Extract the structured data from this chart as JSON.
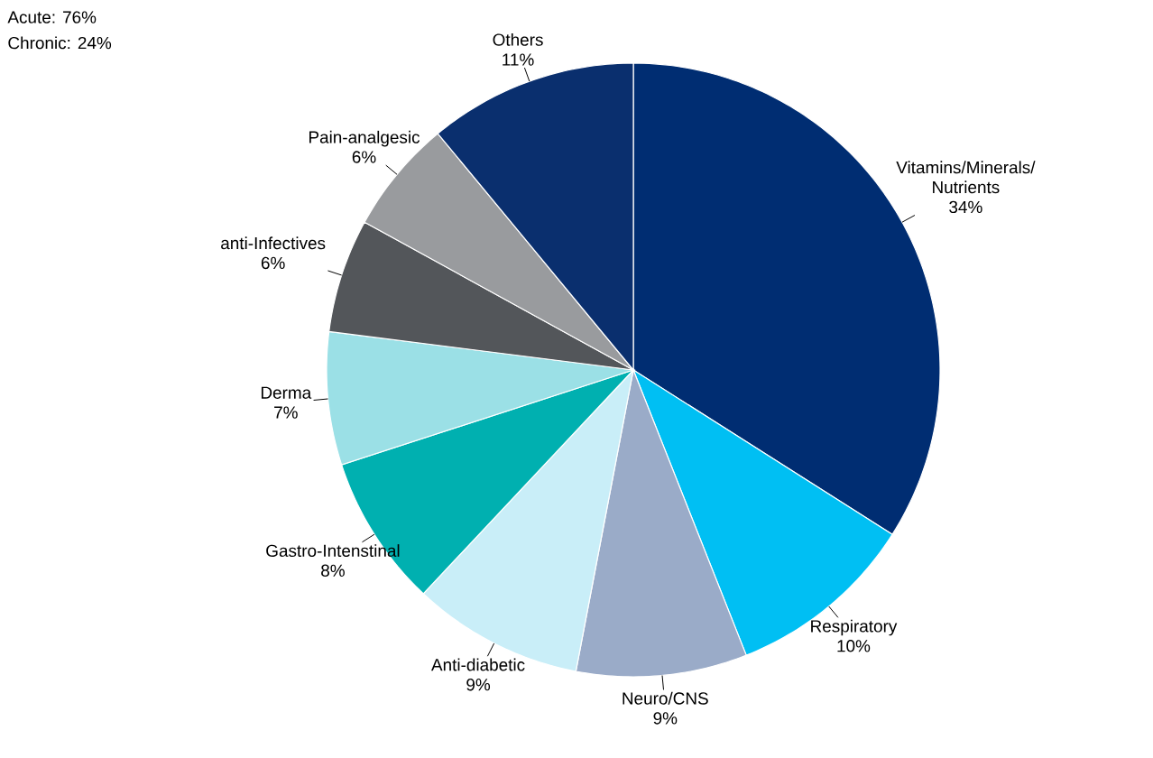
{
  "chart_data": {
    "type": "pie",
    "categories": [
      "Vitamins/Minerals/ Nutrients",
      "Respiratory",
      "Neuro/CNS",
      "Anti-diabetic",
      "Gastro-Intenstinal",
      "Derma",
      "anti-Infectives",
      "Pain-analgesic",
      "Others"
    ],
    "values": [
      34,
      10,
      9,
      9,
      8,
      7,
      6,
      6,
      11
    ],
    "value_labels": [
      "34%",
      "10%",
      "9%",
      "9%",
      "8%",
      "7%",
      "6%",
      "6%",
      "11%"
    ],
    "colors": [
      "#002d72",
      "#00bff3",
      "#9aabc8",
      "#c9eef8",
      "#00b0b0",
      "#9be0e6",
      "#53565a",
      "#999b9e",
      "#0a2f6e"
    ],
    "annotations": [
      "Acute: 76%",
      "Chronic: 24%"
    ]
  }
}
